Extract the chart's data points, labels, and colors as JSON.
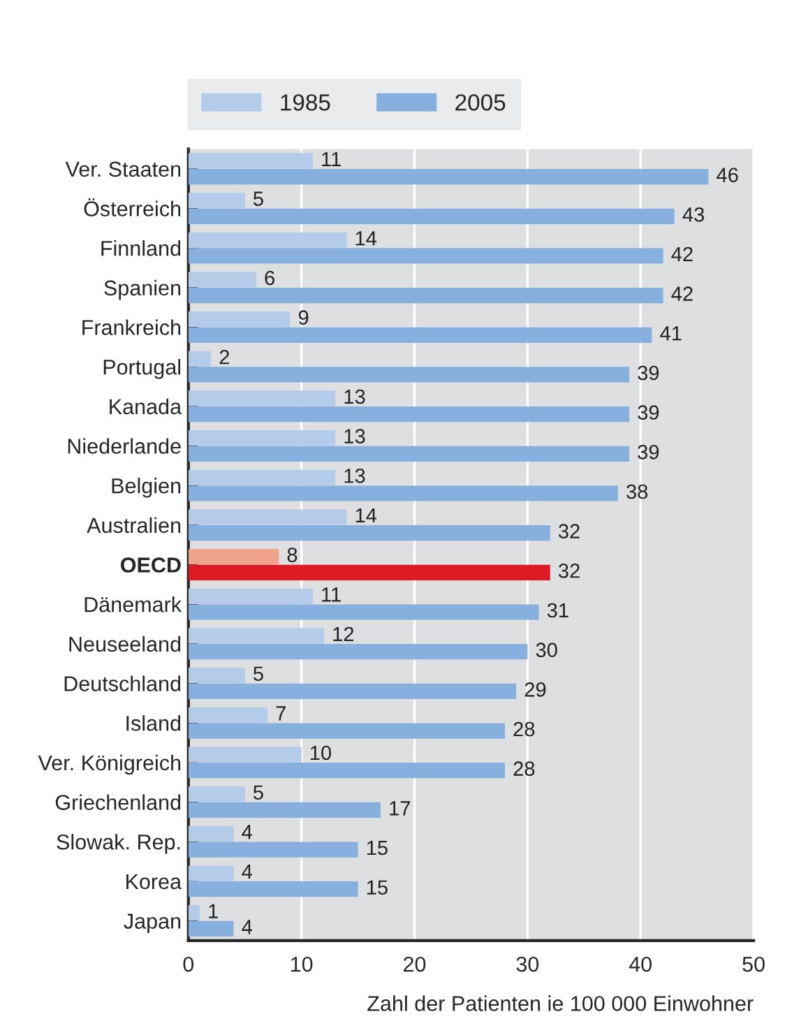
{
  "chart_data": {
    "type": "bar",
    "orientation": "horizontal",
    "xlabel": "Zahl der Patienten ie 100 000 Einwohner",
    "categories": [
      "Ver. Staaten",
      "Österreich",
      "Finnland",
      "Spanien",
      "Frankreich",
      "Portugal",
      "Kanada",
      "Niederlande",
      "Belgien",
      "Australien",
      "OECD",
      "Dänemark",
      "Neuseeland",
      "Deutschland",
      "Island",
      "Ver. Königreich",
      "Griechenland",
      "Slowak. Rep.",
      "Korea",
      "Japan"
    ],
    "series": [
      {
        "name": "1985",
        "color": "#b4cbea",
        "colors": [
          "#b4cbea",
          "#b4cbea",
          "#b4cbea",
          "#b4cbea",
          "#b4cbea",
          "#b4cbea",
          "#b4cbea",
          "#b4cbea",
          "#b4cbea",
          "#b4cbea",
          "#f0a48c",
          "#b4cbea",
          "#b4cbea",
          "#b4cbea",
          "#b4cbea",
          "#b4cbea",
          "#b4cbea",
          "#b4cbea",
          "#b4cbea",
          "#b4cbea"
        ],
        "values": [
          11,
          5,
          14,
          6,
          9,
          2,
          13,
          13,
          13,
          14,
          8,
          11,
          12,
          5,
          7,
          10,
          5,
          4,
          4,
          1
        ]
      },
      {
        "name": "2005",
        "color": "#87b0de",
        "colors": [
          "#87b0de",
          "#87b0de",
          "#87b0de",
          "#87b0de",
          "#87b0de",
          "#87b0de",
          "#87b0de",
          "#87b0de",
          "#87b0de",
          "#87b0de",
          "#de1b24",
          "#87b0de",
          "#87b0de",
          "#87b0de",
          "#87b0de",
          "#87b0de",
          "#87b0de",
          "#87b0de",
          "#87b0de",
          "#87b0de"
        ],
        "values": [
          46,
          43,
          42,
          42,
          41,
          39,
          39,
          39,
          38,
          32,
          32,
          31,
          30,
          29,
          28,
          28,
          17,
          15,
          15,
          4
        ]
      }
    ],
    "xlim": [
      0,
      50
    ],
    "xticks": [
      0,
      10,
      20,
      30,
      40,
      50
    ],
    "grid": "x",
    "legend": "top",
    "data_labels": true
  }
}
